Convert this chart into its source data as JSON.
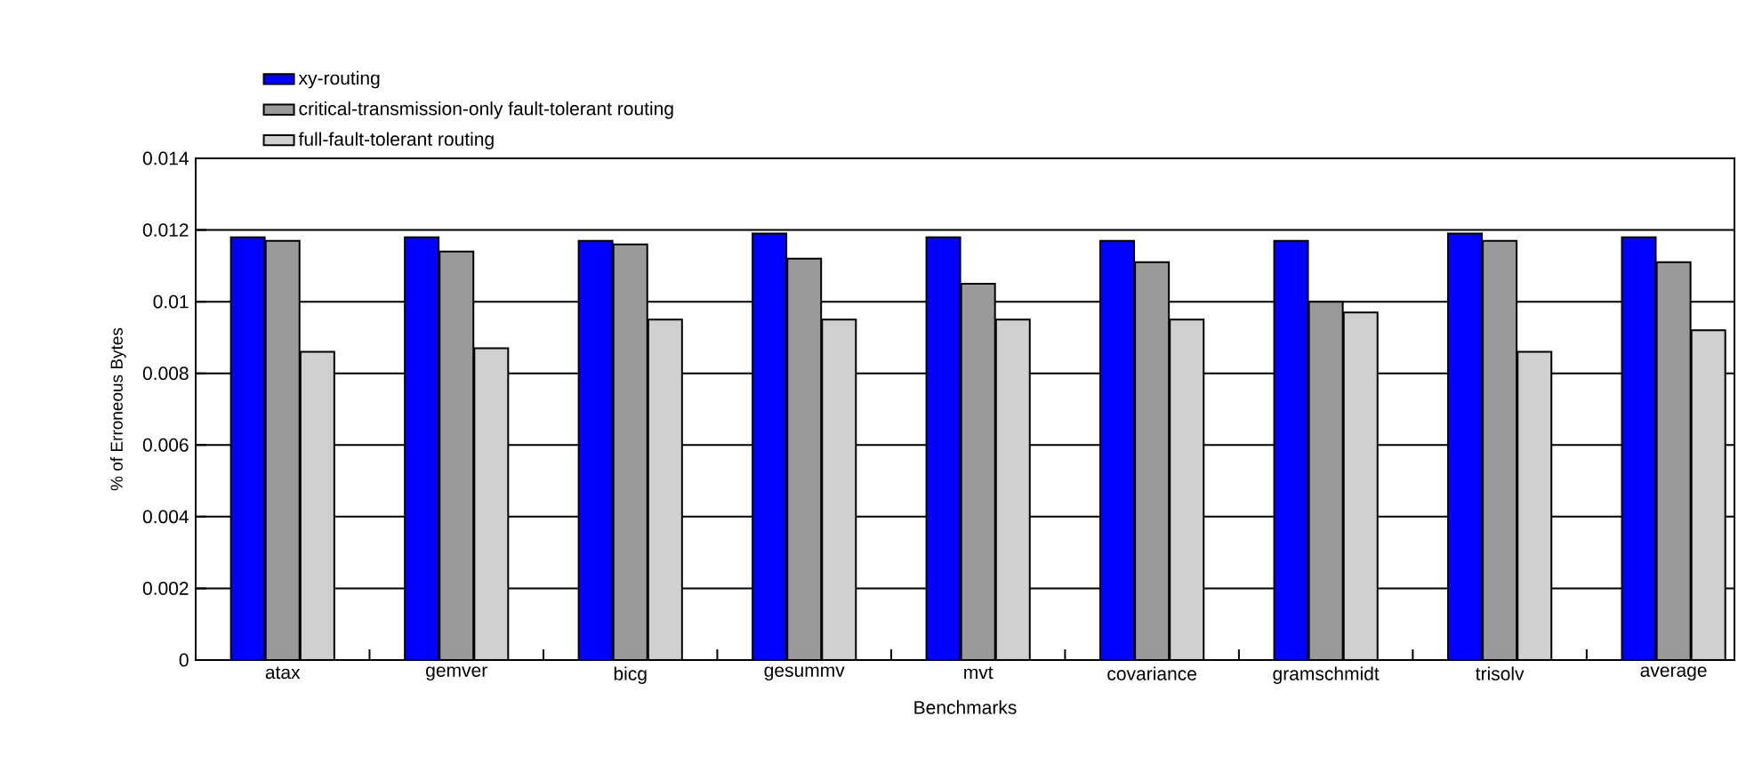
{
  "chart_data": {
    "type": "bar",
    "xlabel": "Benchmarks",
    "ylabel": "% of Erroneous Bytes",
    "categories": [
      "atax",
      "gemver",
      "bicg",
      "gesummv",
      "mvt",
      "covariance",
      "gramschmidt",
      "trisolv",
      "average"
    ],
    "series": [
      {
        "name": "xy-routing",
        "color": "#0000ff",
        "values": [
          0.0118,
          0.0118,
          0.0117,
          0.0119,
          0.0118,
          0.0117,
          0.0117,
          0.0119,
          0.0118
        ]
      },
      {
        "name": "critical-transmission-only fault-tolerant routing",
        "color": "#9a9a9a",
        "values": [
          0.0117,
          0.0114,
          0.0116,
          0.0112,
          0.0105,
          0.0111,
          0.01,
          0.0117,
          0.0111
        ]
      },
      {
        "name": "full-fault-tolerant routing",
        "color": "#d0d0d0",
        "values": [
          0.0086,
          0.0087,
          0.0095,
          0.0095,
          0.0095,
          0.0095,
          0.0097,
          0.0086,
          0.0092
        ]
      }
    ],
    "ylim": [
      0,
      0.014
    ],
    "yticks": [
      0,
      0.002,
      0.004,
      0.006,
      0.008,
      0.01,
      0.012,
      0.014
    ],
    "grid": "y",
    "legend": "top left"
  }
}
